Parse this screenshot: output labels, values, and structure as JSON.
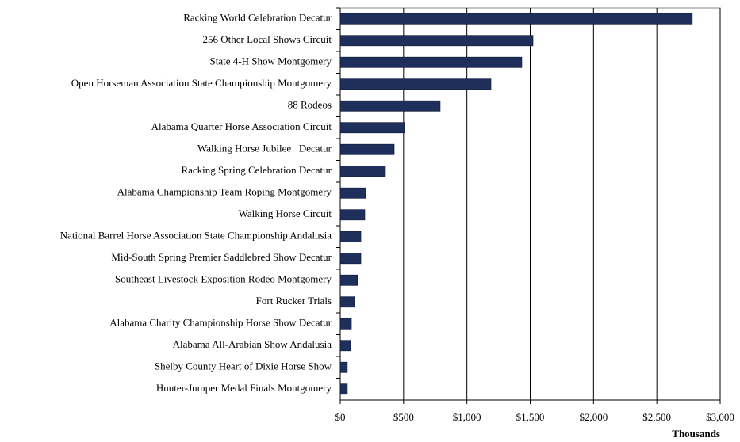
{
  "chart_data": {
    "type": "hbar",
    "categories": [
      "Racking World Celebration Decatur",
      "256 Other Local Shows Circuit",
      "State 4-H Show Montgomery",
      "Open Horseman Association State Championship Montgomery",
      "88 Rodeos",
      "Alabama Quarter Horse Association Circuit",
      "Walking Horse Jubilee   Decatur",
      "Racking Spring Celebration Decatur",
      "Alabama Championship Team Roping Montgomery",
      "Walking Horse Circuit",
      "National Barrel Horse Association State Championship Andalusia",
      "Mid-South Spring Premier Saddlebred Show Decatur",
      "Southeast Livestock Exposition Rodeo Montgomery",
      "Fort Rucker Trials",
      "Alabama Charity Championship Horse Show Decatur",
      "Alabama All-Arabian Show Andalusia",
      "Shelby County Heart of Dixie Horse Show",
      "Hunter-Jumper Medal Finals Montgomery"
    ],
    "values": [
      2780,
      1522,
      1434,
      1190,
      789,
      507,
      426,
      357,
      200,
      194,
      163,
      163,
      138,
      113,
      88,
      81,
      56,
      56
    ],
    "color": "#1f2f5c",
    "xlim": [
      0,
      3000
    ],
    "xticks": [
      {
        "value": 0,
        "label": "$0"
      },
      {
        "value": 500,
        "label": "$500"
      },
      {
        "value": 1000,
        "label": "$1,000"
      },
      {
        "value": 1500,
        "label": "$1,500"
      },
      {
        "value": 2000,
        "label": "$2,000"
      },
      {
        "value": 2500,
        "label": "$2,500"
      },
      {
        "value": 3000,
        "label": "$3,000"
      }
    ],
    "x_label": "Thousands",
    "grid": true
  }
}
